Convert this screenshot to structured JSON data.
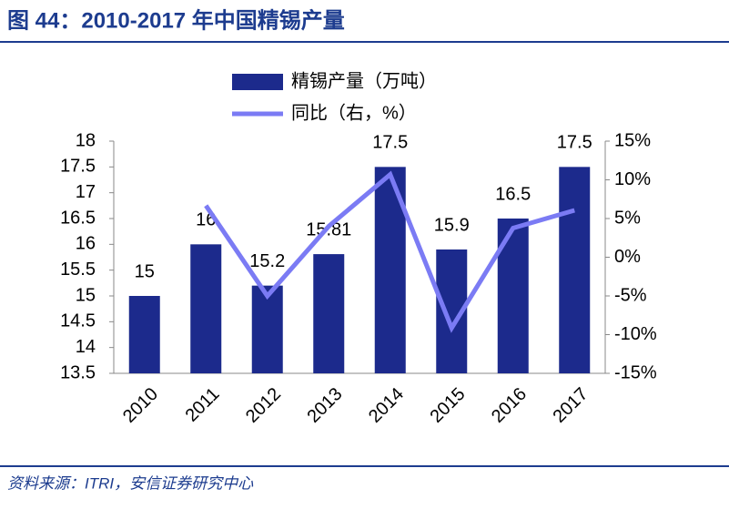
{
  "chart_data": {
    "type": "bar_line",
    "title": "图 44：2010-2017 年中国精锡产量",
    "source": "资料来源：ITRI，安信证券研究中心",
    "categories": [
      "2010",
      "2011",
      "2012",
      "2013",
      "2014",
      "2015",
      "2016",
      "2017"
    ],
    "series": [
      {
        "name": "精锡产量（万吨）",
        "type": "bar",
        "color": "#1c2a8c",
        "values": [
          15,
          16,
          15.2,
          15.81,
          17.5,
          15.9,
          16.5,
          17.5
        ]
      },
      {
        "name": "同比（右，%）",
        "type": "line",
        "axis": "y2",
        "color": "#7b7bf4",
        "values": [
          null,
          6.67,
          -5,
          4.01,
          10.69,
          -9.14,
          3.77,
          6.06
        ]
      }
    ],
    "ylim": [
      13.5,
      18
    ],
    "yticks": [
      13.5,
      14,
      14.5,
      15,
      15.5,
      16,
      16.5,
      17,
      17.5,
      18
    ],
    "y2lim": [
      -15,
      15
    ],
    "y2ticks": [
      {
        "value": -15,
        "label": "-15%"
      },
      {
        "value": -10,
        "label": "-10%"
      },
      {
        "value": -5,
        "label": "-5%"
      },
      {
        "value": 0,
        "label": "0%"
      },
      {
        "value": 5,
        "label": "5%"
      },
      {
        "value": 10,
        "label": "10%"
      },
      {
        "value": 15,
        "label": "15%"
      }
    ]
  }
}
